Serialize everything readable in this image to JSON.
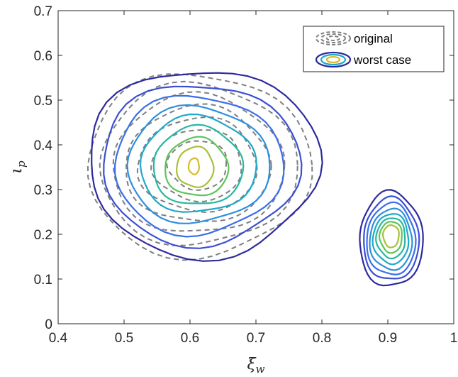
{
  "chart_data": {
    "type": "contour",
    "xlabel": "ξw",
    "ylabel": "ιp",
    "xlim": [
      0.4,
      1.0
    ],
    "ylim": [
      0.0,
      0.7
    ],
    "xticks": [
      "0.4",
      "0.5",
      "0.6",
      "0.7",
      "0.8",
      "0.9",
      "1"
    ],
    "yticks": [
      "0",
      "0.1",
      "0.2",
      "0.3",
      "0.4",
      "0.5",
      "0.6",
      "0.7"
    ],
    "grid": false,
    "legend": {
      "placement": "top-right",
      "entries": [
        {
          "label": "original",
          "style": "dashed",
          "color": "#7f7f7f"
        },
        {
          "label": "worst case",
          "style": "solid",
          "color": "#3b2fa6"
        }
      ]
    },
    "level_colors": [
      "#2e2a9e",
      "#3a4fd4",
      "#3b6ee8",
      "#2e8fdf",
      "#1fa8c9",
      "#26b8a0",
      "#5ec45a",
      "#a8c03a",
      "#d9bb2a"
    ],
    "series": [
      {
        "name": "original",
        "style": "dashed",
        "color": "#7f7f7f",
        "contours": [
          {
            "cx": 0.612,
            "cy": 0.355,
            "rx": 0.17,
            "ry": 0.205
          },
          {
            "cx": 0.612,
            "cy": 0.355,
            "rx": 0.15,
            "ry": 0.18
          },
          {
            "cx": 0.612,
            "cy": 0.355,
            "rx": 0.13,
            "ry": 0.155
          },
          {
            "cx": 0.612,
            "cy": 0.355,
            "rx": 0.11,
            "ry": 0.13
          },
          {
            "cx": 0.612,
            "cy": 0.355,
            "rx": 0.09,
            "ry": 0.105
          },
          {
            "cx": 0.612,
            "cy": 0.355,
            "rx": 0.068,
            "ry": 0.08
          },
          {
            "cx": 0.612,
            "cy": 0.355,
            "rx": 0.045,
            "ry": 0.055
          }
        ]
      },
      {
        "name": "worst case",
        "style": "solid",
        "clusters": [
          {
            "contours": [
              {
                "cx": 0.62,
                "cy": 0.36,
                "rx": 0.175,
                "ry": 0.21
              },
              {
                "cx": 0.615,
                "cy": 0.357,
                "rx": 0.15,
                "ry": 0.18
              },
              {
                "cx": 0.612,
                "cy": 0.355,
                "rx": 0.128,
                "ry": 0.155
              },
              {
                "cx": 0.612,
                "cy": 0.355,
                "rx": 0.108,
                "ry": 0.13
              },
              {
                "cx": 0.612,
                "cy": 0.355,
                "rx": 0.088,
                "ry": 0.108
              },
              {
                "cx": 0.612,
                "cy": 0.352,
                "rx": 0.068,
                "ry": 0.088
              },
              {
                "cx": 0.61,
                "cy": 0.35,
                "rx": 0.048,
                "ry": 0.065
              },
              {
                "cx": 0.608,
                "cy": 0.35,
                "rx": 0.028,
                "ry": 0.045
              },
              {
                "cx": 0.606,
                "cy": 0.352,
                "rx": 0.008,
                "ry": 0.018
              }
            ]
          },
          {
            "contours": [
              {
                "cx": 0.905,
                "cy": 0.188,
                "rx": 0.048,
                "ry": 0.106
              },
              {
                "cx": 0.905,
                "cy": 0.188,
                "rx": 0.042,
                "ry": 0.092
              },
              {
                "cx": 0.905,
                "cy": 0.188,
                "rx": 0.037,
                "ry": 0.08
              },
              {
                "cx": 0.905,
                "cy": 0.188,
                "rx": 0.032,
                "ry": 0.068
              },
              {
                "cx": 0.905,
                "cy": 0.19,
                "rx": 0.027,
                "ry": 0.056
              },
              {
                "cx": 0.905,
                "cy": 0.192,
                "rx": 0.022,
                "ry": 0.045
              },
              {
                "cx": 0.905,
                "cy": 0.194,
                "rx": 0.017,
                "ry": 0.035
              },
              {
                "cx": 0.905,
                "cy": 0.196,
                "rx": 0.012,
                "ry": 0.025
              }
            ]
          }
        ]
      }
    ]
  }
}
